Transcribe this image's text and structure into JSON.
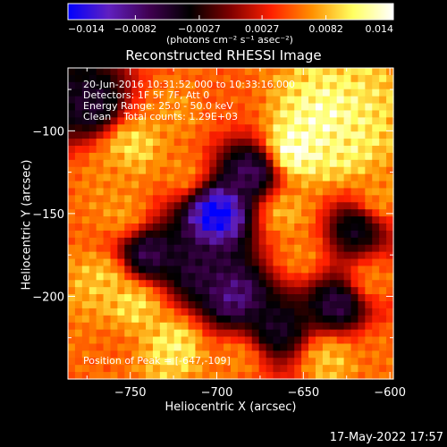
{
  "chart_data": {
    "type": "heatmap",
    "title": "Reconstructed RHESSI Image",
    "xlabel": "Heliocentric X (arcsec)",
    "ylabel": "Heliocentric Y (arcsec)",
    "xlim": [
      -786,
      -598
    ],
    "ylim": [
      -250,
      -62
    ],
    "xticks": [
      -750,
      -700,
      -650,
      -600
    ],
    "xtick_labels": [
      "−750",
      "−700",
      "−650",
      "−600"
    ],
    "yticks": [
      -100,
      -150,
      -200
    ],
    "ytick_labels": [
      "−100",
      "−150",
      "−200"
    ],
    "colorbar": {
      "min": -0.014,
      "max": 0.014,
      "ticks": [
        -0.014,
        -0.0082,
        -0.0027,
        0.0027,
        0.0082,
        0.014
      ],
      "tick_labels": [
        "−0.014",
        "−0.0082",
        "−0.0027",
        "0.0027",
        "0.0082",
        "0.014"
      ],
      "unit_label": "(photons cm⁻² s⁻¹ asec⁻²)",
      "colors": [
        "#0000ff",
        "#6020c0",
        "#400050",
        "#000000",
        "#800000",
        "#ff2000",
        "#ff9000",
        "#ffff60",
        "#ffffff"
      ]
    },
    "annotations": {
      "time_range": "20-Jun-2016 10:31:52.000 to 10:33:16.000",
      "detectors": "Detectors: 1F 5F 7F, Att 0",
      "energy_range": "Energy Range: 25.0 - 50.0 keV",
      "clean": "Clean    Total counts: 1.29E+03",
      "peak": "Position of Peak = [-647,-109]"
    },
    "peak_position": [
      -647,
      -109
    ],
    "map_regions": [
      {
        "x": -655,
        "y": -112,
        "value": 0.0118
      },
      {
        "x": -640,
        "y": -95,
        "value": 0.0106
      },
      {
        "x": -628,
        "y": -110,
        "value": 0.0095
      },
      {
        "x": -660,
        "y": -150,
        "value": 0.0072
      },
      {
        "x": -652,
        "y": -175,
        "value": 0.0058
      },
      {
        "x": -605,
        "y": -140,
        "value": 0.0062
      },
      {
        "x": -610,
        "y": -190,
        "value": 0.0056
      },
      {
        "x": -748,
        "y": -110,
        "value": 0.0085
      },
      {
        "x": -760,
        "y": -130,
        "value": 0.0058
      },
      {
        "x": -755,
        "y": -150,
        "value": 0.0064
      },
      {
        "x": -765,
        "y": -190,
        "value": 0.0078
      },
      {
        "x": -748,
        "y": -205,
        "value": 0.0086
      },
      {
        "x": -760,
        "y": -230,
        "value": 0.0048
      },
      {
        "x": -722,
        "y": -88,
        "value": 0.0062
      },
      {
        "x": -720,
        "y": -125,
        "value": 0.0058
      },
      {
        "x": -700,
        "y": -80,
        "value": 0.0045
      },
      {
        "x": -725,
        "y": -230,
        "value": 0.0092
      },
      {
        "x": -688,
        "y": -238,
        "value": 0.0058
      },
      {
        "x": -635,
        "y": -238,
        "value": 0.0076
      },
      {
        "x": -605,
        "y": -232,
        "value": 0.0052
      },
      {
        "x": -700,
        "y": -150,
        "value": -0.0135
      },
      {
        "x": -680,
        "y": -125,
        "value": -0.0066
      },
      {
        "x": -740,
        "y": -175,
        "value": -0.0062
      },
      {
        "x": -690,
        "y": -200,
        "value": -0.0076
      },
      {
        "x": -710,
        "y": -185,
        "value": -0.0052
      },
      {
        "x": -630,
        "y": -205,
        "value": -0.0058
      },
      {
        "x": -620,
        "y": -160,
        "value": -0.0042
      },
      {
        "x": -772,
        "y": -85,
        "value": -0.0048
      },
      {
        "x": -665,
        "y": -220,
        "value": -0.0045
      }
    ]
  },
  "footer": {
    "timestamp": "17-May-2022 17:57"
  }
}
